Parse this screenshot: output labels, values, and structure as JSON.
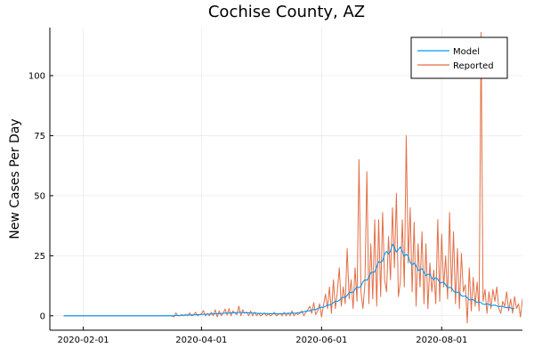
{
  "chart_data": {
    "type": "line",
    "title": "Cochise County, AZ",
    "xlabel": "",
    "ylabel": "New Cases Per Day",
    "x_start": "2020-01-22",
    "x_end": "2020-09-07",
    "xlim": [
      "2020-01-15",
      "2020-09-11"
    ],
    "ylim": [
      -6,
      120
    ],
    "x_ticks": [
      "2020-02-01",
      "2020-04-01",
      "2020-06-01",
      "2020-08-01"
    ],
    "y_ticks": [
      0,
      25,
      50,
      75,
      100
    ],
    "grid": true,
    "legend_position": "top-right",
    "series": [
      {
        "name": "Model",
        "color": "#009AFA",
        "anchors": [
          [
            "2020-01-22",
            0
          ],
          [
            "2020-03-17",
            0
          ],
          [
            "2020-03-25",
            0.3
          ],
          [
            "2020-04-05",
            0.7
          ],
          [
            "2020-04-20",
            1.4
          ],
          [
            "2020-05-01",
            1.0
          ],
          [
            "2020-05-10",
            0.8
          ],
          [
            "2020-05-20",
            1.2
          ],
          [
            "2020-05-28",
            2.5
          ],
          [
            "2020-06-05",
            4.5
          ],
          [
            "2020-06-12",
            7.5
          ],
          [
            "2020-06-20",
            12
          ],
          [
            "2020-06-27",
            18
          ],
          [
            "2020-07-03",
            25
          ],
          [
            "2020-07-07",
            28.5
          ],
          [
            "2020-07-12",
            27
          ],
          [
            "2020-07-18",
            21
          ],
          [
            "2020-07-25",
            17
          ],
          [
            "2020-08-01",
            14
          ],
          [
            "2020-08-08",
            10
          ],
          [
            "2020-08-15",
            7
          ],
          [
            "2020-08-22",
            5
          ],
          [
            "2020-09-07",
            3
          ]
        ]
      },
      {
        "name": "Reported",
        "color": "#E26F46",
        "values": [
          0,
          0,
          0,
          0,
          0,
          0,
          0,
          0,
          0,
          0,
          0,
          0,
          0,
          0,
          0,
          0,
          0,
          0,
          0,
          0,
          0,
          0,
          0,
          0,
          0,
          0,
          0,
          0,
          0,
          0,
          0,
          0,
          0,
          0,
          0,
          0,
          0,
          0,
          0,
          0,
          0,
          0,
          0,
          0,
          0,
          0,
          0,
          0,
          0,
          0,
          0,
          0,
          0,
          0,
          0,
          0,
          -0.5,
          1.2,
          0,
          0,
          0.5,
          0,
          0.6,
          0,
          1.2,
          0,
          0.3,
          1.5,
          0,
          0.5,
          0.8,
          2.2,
          0,
          1,
          0,
          1.5,
          0,
          2.5,
          -0.5,
          2,
          0,
          1,
          2.8,
          0.3,
          3,
          0,
          2,
          1,
          0.5,
          4,
          0,
          2.5,
          1,
          1.5,
          0,
          2,
          0,
          1.5,
          0,
          1,
          0,
          0.5,
          1.2,
          0,
          0.8,
          0,
          0.5,
          1.5,
          0,
          0.5,
          1,
          0,
          1.5,
          0,
          1.2,
          0,
          2,
          0,
          1,
          0.5,
          1,
          2,
          0,
          1.5,
          2.5,
          4,
          1,
          5.5,
          0.5,
          2,
          5,
          -0.5,
          4.5,
          9,
          3,
          12,
          1,
          15,
          3,
          10,
          20,
          4,
          12,
          5,
          28,
          7,
          15,
          3,
          20,
          6,
          65,
          10,
          3,
          13,
          60,
          5,
          30,
          7,
          40,
          4,
          40,
          8,
          43,
          15,
          10,
          33,
          15,
          45,
          20,
          51,
          8,
          14,
          40,
          12,
          75,
          22,
          45,
          10,
          39,
          4,
          30,
          12,
          35,
          5,
          30,
          3,
          22,
          10,
          19,
          5,
          40,
          6,
          34,
          12,
          25,
          7,
          43,
          10,
          35,
          5,
          28,
          3,
          26,
          10,
          13,
          -3,
          20,
          2,
          16,
          4,
          14,
          2,
          118,
          6,
          11,
          1,
          10,
          3,
          11,
          6,
          12,
          3,
          1,
          6,
          4,
          10,
          2,
          7,
          1,
          8,
          3,
          5,
          -0.5,
          7,
          2,
          9,
          0,
          6,
          2,
          4,
          1,
          3,
          8,
          1,
          5,
          0,
          10,
          2,
          4,
          0
        ]
      }
    ]
  }
}
